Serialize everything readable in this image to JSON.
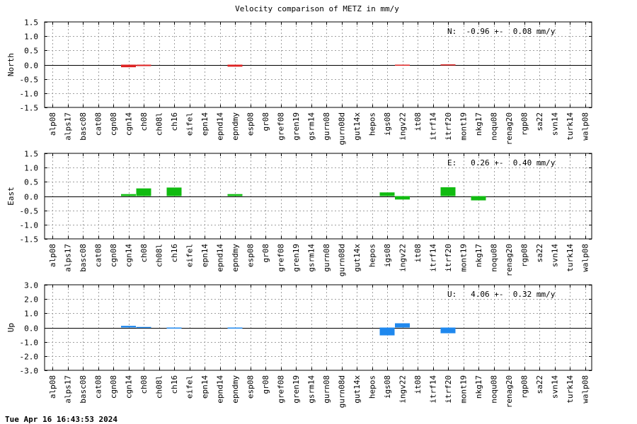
{
  "chart_data": {
    "type": "bar",
    "title": "Velocity comparison of METZ in mm/y",
    "categories": [
      "alp08",
      "alps17",
      "basc08",
      "cat08",
      "cgn08",
      "cgn14",
      "ch08",
      "ch08l",
      "ch16",
      "eifel",
      "epn14",
      "epnd14",
      "epndmy",
      "esp08",
      "gr08",
      "gref08",
      "gren19",
      "gsrm14",
      "gurn08",
      "gurn08d",
      "gut14x",
      "hepos",
      "igs08",
      "ingv22",
      "it08",
      "itrf14",
      "itrf20",
      "mont19",
      "nkg17",
      "noqu08",
      "renag20",
      "rgp08",
      "sa22",
      "svn14",
      "turk14",
      "walp08"
    ],
    "grid": true,
    "panels": [
      {
        "name": "north",
        "ylabel": "North",
        "color": "#dd2222",
        "ylim": [
          -1.5,
          1.5
        ],
        "yticks": [
          "1.5",
          "1.0",
          "0.5",
          "0.0",
          "-0.5",
          "-1.0",
          "-1.5"
        ],
        "stat": "N:  -0.96 +-  0.08 mm/y",
        "values": [
          null,
          null,
          null,
          null,
          null,
          -0.09,
          -0.05,
          null,
          null,
          null,
          null,
          null,
          -0.07,
          null,
          null,
          null,
          null,
          null,
          null,
          null,
          null,
          null,
          null,
          -0.03,
          null,
          null,
          0.01,
          null,
          null,
          null,
          null,
          null,
          null,
          null,
          null,
          null
        ]
      },
      {
        "name": "east",
        "ylabel": "East",
        "color": "#11bb11",
        "ylim": [
          -1.5,
          1.5
        ],
        "yticks": [
          "1.5",
          "1.0",
          "0.5",
          "0.0",
          "-0.5",
          "-1.0",
          "-1.5"
        ],
        "stat": "E:   0.26 +-  0.40 mm/y",
        "values": [
          null,
          null,
          null,
          null,
          null,
          0.07,
          0.27,
          null,
          0.3,
          null,
          null,
          null,
          0.07,
          null,
          null,
          null,
          null,
          null,
          null,
          null,
          null,
          null,
          0.13,
          -0.12,
          null,
          null,
          0.31,
          null,
          -0.15,
          null,
          null,
          null,
          null,
          null,
          null,
          null
        ]
      },
      {
        "name": "up",
        "ylabel": "Up",
        "color": "#1f88ee",
        "ylim": [
          -3.0,
          3.0
        ],
        "yticks": [
          "3.0",
          "2.0",
          "1.0",
          "0.0",
          "-1.0",
          "-2.0",
          "-3.0"
        ],
        "stat": "U:   4.06 +-  0.32 mm/y",
        "values": [
          null,
          null,
          null,
          null,
          null,
          0.12,
          0.04,
          null,
          -0.06,
          null,
          null,
          null,
          -0.05,
          null,
          null,
          null,
          null,
          null,
          null,
          null,
          null,
          null,
          -0.55,
          0.3,
          null,
          null,
          -0.4,
          null,
          null,
          null,
          null,
          null,
          null,
          null,
          null,
          null
        ]
      }
    ]
  },
  "footer": {
    "timestamp": "Tue Apr 16 16:43:53 2024"
  }
}
